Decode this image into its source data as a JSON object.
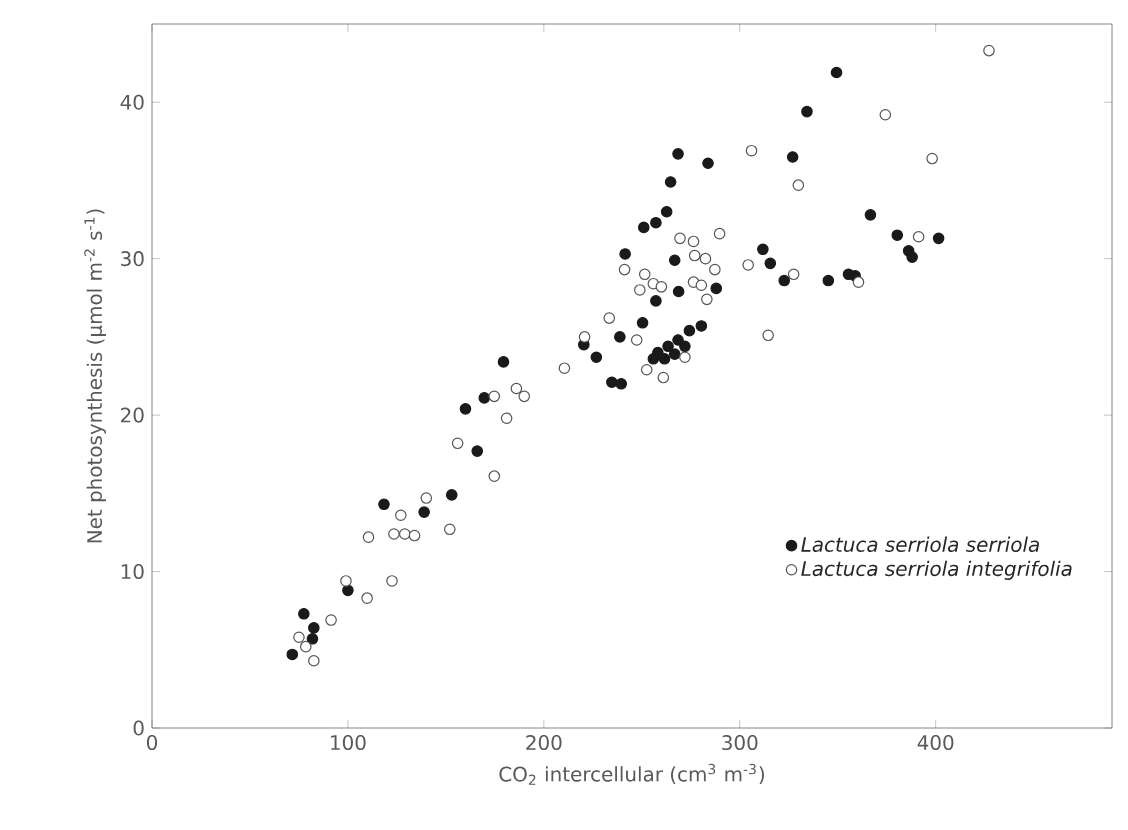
{
  "chart_data": {
    "type": "scatter",
    "xlabel": "CO$_{2}$ intercellular (cm$^{3}$ m$^{-3}$)",
    "ylabel": "Net photosynthesis (μmol m$^{-2}$ s$^{-1}$)",
    "xlim": [
      0,
      490
    ],
    "ylim": [
      0,
      45
    ],
    "xticks": [
      0,
      100,
      200,
      300,
      400
    ],
    "yticks": [
      0,
      10,
      20,
      30,
      40
    ],
    "grid": false,
    "legend": "bottom right",
    "marker": "circle",
    "series": [
      {
        "name": "Lactuca serriola serriola",
        "color": "#1a1a1a",
        "x": [
          77.5,
          82.6,
          81.9,
          71.6,
          100,
          118.4,
          138.9,
          153,
          166,
          160,
          169.6,
          179.4,
          268.5,
          283.8,
          327,
          264.7,
          262.7,
          257.2,
          251,
          241.5,
          266.8,
          311.8,
          315.6,
          322.7,
          345.2,
          288,
          268.8,
          257.2,
          250.4,
          238.8,
          226.8,
          220.4,
          280.4,
          274.3,
          268.5,
          263.4,
          258.2,
          255.9,
          261.6,
          266.8,
          272,
          234.7,
          239.5,
          349.4,
          334.3,
          366.7,
          380.4,
          386.2,
          388,
          401.5,
          355.5,
          358.9
        ],
        "values": [
          7.3,
          6.4,
          5.7,
          4.7,
          8.8,
          14.3,
          13.8,
          14.9,
          17.7,
          20.4,
          21.1,
          23.4,
          36.7,
          36.1,
          36.5,
          34.9,
          33.0,
          32.3,
          32.0,
          30.3,
          29.9,
          30.6,
          29.7,
          28.6,
          28.6,
          28.1,
          27.9,
          27.3,
          25.9,
          25.0,
          23.7,
          24.5,
          25.7,
          25.4,
          24.8,
          24.4,
          24.0,
          23.6,
          23.6,
          23.9,
          24.4,
          22.1,
          22.0,
          41.9,
          39.4,
          32.8,
          31.5,
          30.5,
          30.1,
          31.3,
          29.0,
          28.9
        ]
      },
      {
        "name": "Lactuca serriola integrifolia",
        "color": "#555555",
        "x": [
          75,
          78.5,
          82.6,
          91.4,
          99,
          109.8,
          122.5,
          110.5,
          123.5,
          129,
          134,
          127,
          140,
          152,
          156,
          174.7,
          181,
          174.7,
          186,
          306,
          329.9,
          289.7,
          269.5,
          276.4,
          277,
          282.5,
          287.3,
          304.3,
          327.5,
          241.2,
          251.5,
          255.9,
          249,
          260,
          276.4,
          280.4,
          283.2,
          314.5,
          233.4,
          220.8,
          247.4,
          210.5,
          272,
          252.5,
          261,
          190,
          427.2,
          374.3,
          398.2,
          391.3,
          360.6
        ],
        "values": [
          5.8,
          5.2,
          4.3,
          6.9,
          9.4,
          8.3,
          9.4,
          12.2,
          12.4,
          12.4,
          12.3,
          13.6,
          14.7,
          12.7,
          18.2,
          16.1,
          19.8,
          21.2,
          21.7,
          36.9,
          34.7,
          31.6,
          31.3,
          31.1,
          30.2,
          30.0,
          29.3,
          29.6,
          29.0,
          29.3,
          29.0,
          28.4,
          28.0,
          28.2,
          28.5,
          28.3,
          27.4,
          25.1,
          26.2,
          25.0,
          24.8,
          23.0,
          23.7,
          22.9,
          22.4,
          21.2,
          43.3,
          39.2,
          36.4,
          31.4,
          28.5
        ]
      }
    ]
  }
}
